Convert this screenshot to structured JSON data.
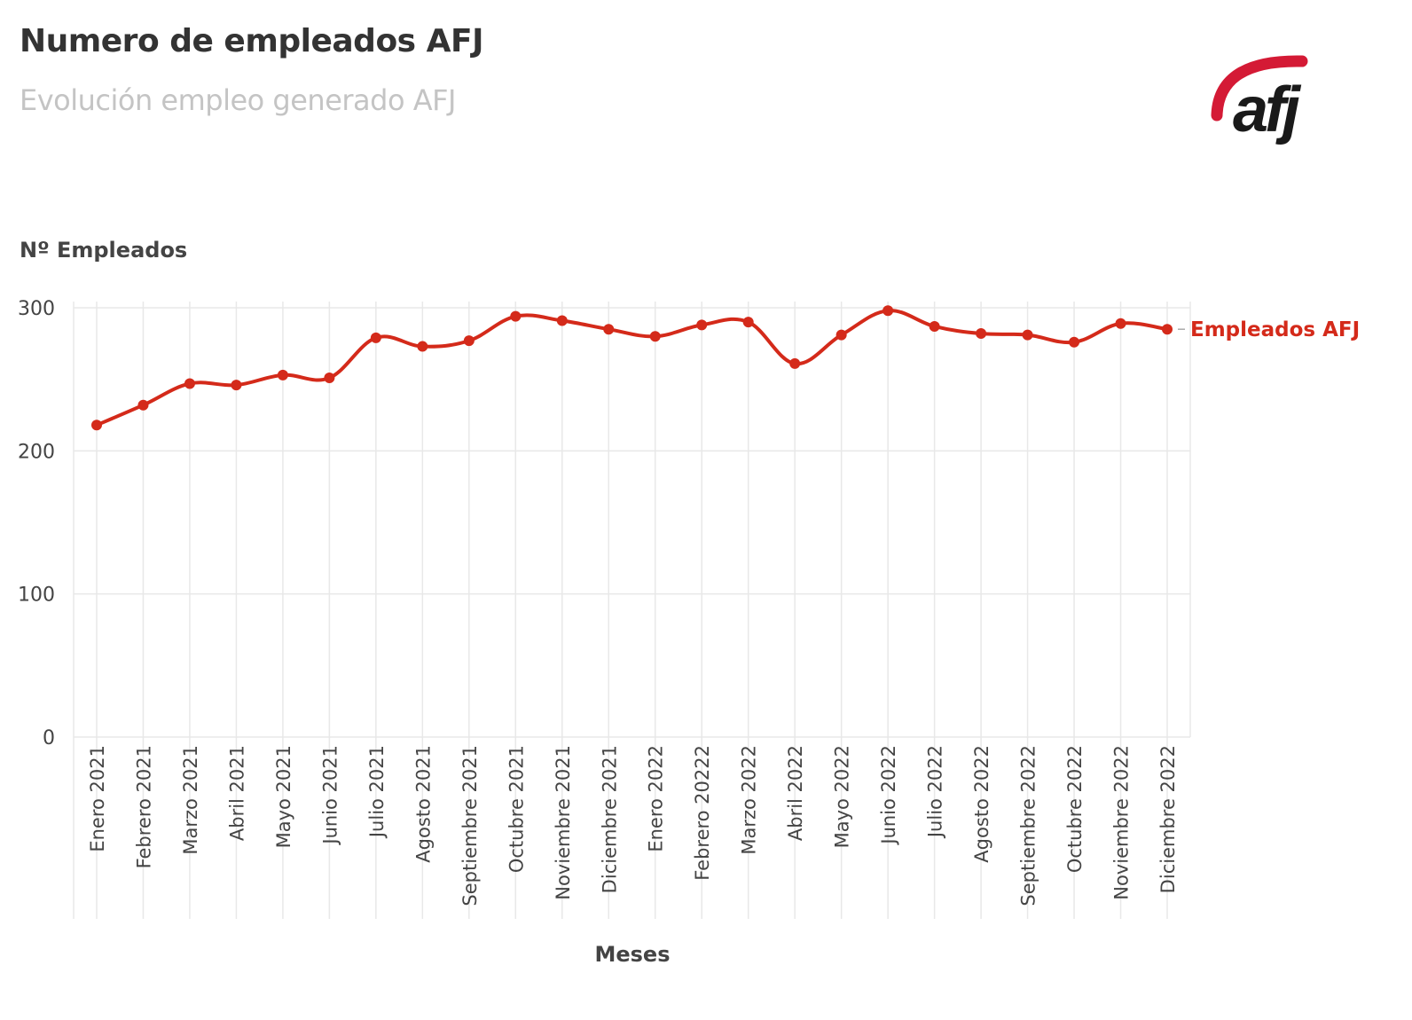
{
  "header": {
    "title": "Numero de empleados AFJ",
    "subtitle": "Evolución empleo generado AFJ",
    "logo_text": "afj"
  },
  "chart_data": {
    "type": "line",
    "title": "Numero de empleados AFJ",
    "subtitle": "Evolución empleo generado AFJ",
    "xlabel": "Meses",
    "ylabel": "Nº Empleados",
    "ylim": [
      0,
      300
    ],
    "yticks": [
      "0",
      "100",
      "200",
      "300"
    ],
    "grid": true,
    "legend": "inline-right",
    "categories": [
      "Enero 2021",
      "Febrero 2021",
      "Marzo 2021",
      "Abril 2021",
      "Mayo 2021",
      "Junio 2021",
      "Julio 2021",
      "Agosto 2021",
      "Septiembre 2021",
      "Octubre 2021",
      "Noviembre 2021",
      "Diciembre 2021",
      "Enero 2022",
      "Febrero 20222",
      "Marzo 2022",
      "Abril 2022",
      "Mayo 2022",
      "Junio 2022",
      "Julio 2022",
      "Agosto 2022",
      "Septiembre 2022",
      "Octubre 2022",
      "Noviembre 2022",
      "Diciembre 2022"
    ],
    "series": [
      {
        "name": "Empleados AFJ",
        "color": "#d42a1a",
        "values": [
          218,
          232,
          247,
          246,
          253,
          251,
          279,
          273,
          277,
          294,
          291,
          285,
          280,
          288,
          290,
          261,
          281,
          298,
          287,
          282,
          281,
          276,
          289,
          285
        ]
      }
    ]
  }
}
